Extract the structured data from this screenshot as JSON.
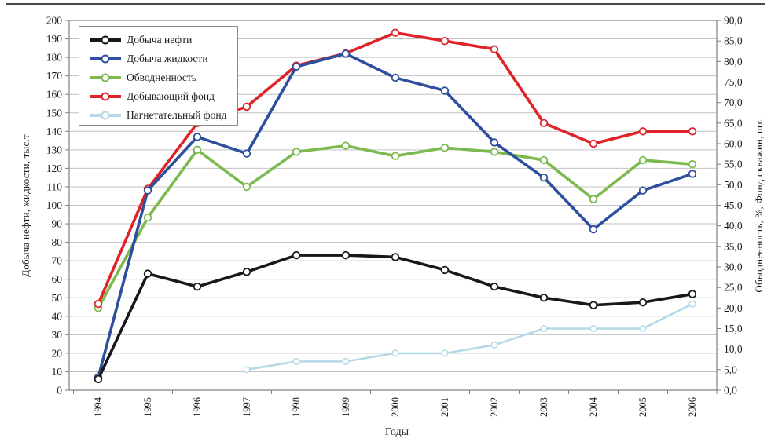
{
  "figure": {
    "top_border_color": "#4a4a4a",
    "plot_border_color": "#7f7f7f",
    "gridline_color": "#c2c2c2",
    "text_color": "#1c1c1c"
  },
  "chart_data": {
    "type": "line",
    "title": "",
    "xlabel": "Годы",
    "x_categories": [
      "1994",
      "1995",
      "1996",
      "1997",
      "1998",
      "1999",
      "2000",
      "2001",
      "2002",
      "2003",
      "2004",
      "2005",
      "2006"
    ],
    "left_axis": {
      "title": "Добыча нефти, жидкости, тыс.т",
      "min": 0,
      "max": 200,
      "step": 10,
      "tick_labels": [
        "0",
        "10",
        "20",
        "30",
        "40",
        "50",
        "60",
        "70",
        "80",
        "90",
        "100",
        "110",
        "120",
        "130",
        "140",
        "150",
        "160",
        "170",
        "180",
        "190",
        "200"
      ]
    },
    "right_axis": {
      "title": "Обводненность, %, Фонд скважин, шт.",
      "min": 0,
      "max": 90,
      "step": 5,
      "tick_labels": [
        "0,0",
        "5,0",
        "10,0",
        "15,0",
        "20,0",
        "25,0",
        "30,0",
        "35,0",
        "40,0",
        "45,0",
        "50,0",
        "55,0",
        "60,0",
        "65,0",
        "70,0",
        "75,0",
        "80,0",
        "85,0",
        "90,0"
      ]
    },
    "grid": "horizontal-only",
    "legend_position": "top-left-inside",
    "series": [
      {
        "name": "Добыча нефти",
        "axis": "left",
        "color": "#181818",
        "marker": "circle",
        "values": [
          6,
          63,
          56,
          64,
          73,
          73,
          72,
          65,
          56,
          50,
          46,
          47.5,
          52
        ]
      },
      {
        "name": "Добыча жидкости",
        "axis": "left",
        "color": "#2e4e9e",
        "marker": "circle",
        "values": [
          7,
          108,
          137,
          128,
          175,
          182,
          169,
          162,
          134,
          115,
          87,
          108,
          117
        ]
      },
      {
        "name": "Обводненность",
        "axis": "right",
        "color": "#7cb94e",
        "marker": "circle",
        "values": [
          20,
          42,
          58.5,
          49.5,
          58,
          59.5,
          57,
          59,
          58,
          56,
          46.5,
          56,
          55
        ]
      },
      {
        "name": "Добывающий фонд",
        "axis": "right",
        "color": "#e02328",
        "marker": "circle",
        "values": [
          21,
          49,
          65,
          69,
          79,
          82,
          87,
          85,
          83,
          65,
          60,
          63,
          63
        ]
      },
      {
        "name": "Нагнетательный фонд",
        "axis": "right",
        "color": "#b6d9e8",
        "marker": "circle",
        "values": [
          null,
          null,
          null,
          5,
          7,
          7,
          9,
          9,
          11,
          15,
          15,
          15,
          21
        ]
      }
    ]
  }
}
